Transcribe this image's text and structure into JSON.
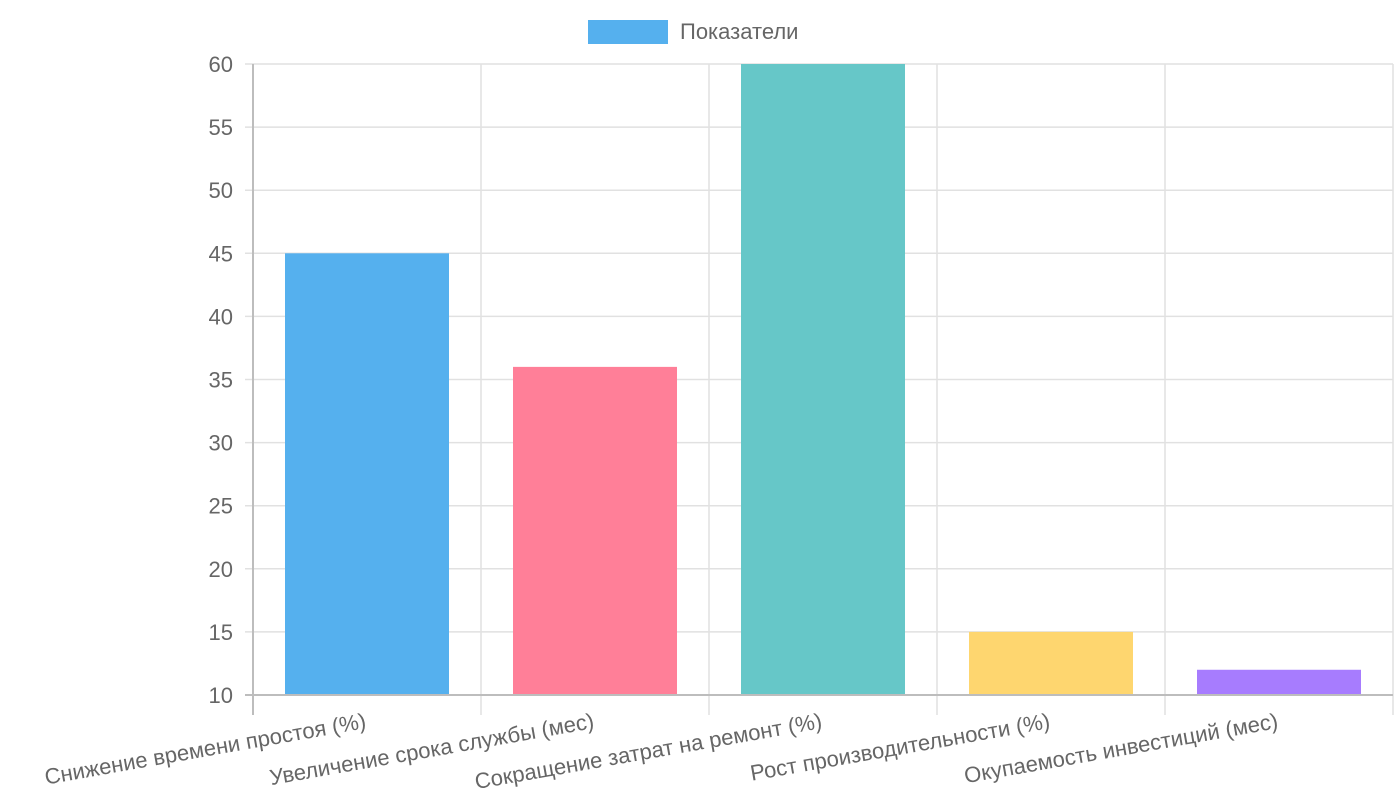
{
  "chart_data": {
    "type": "bar",
    "title": "",
    "xlabel": "",
    "ylabel": "",
    "legend": {
      "position": "top-center",
      "series_name": "Показатели",
      "swatch_color": "#55b0ee"
    },
    "categories": [
      "Снижение времени простоя (%)",
      "Увеличение срока службы (мес)",
      "Сокращение затрат на ремонт (%)",
      "Рост производительности (%)",
      "Окупаемость инвестиций (мес)"
    ],
    "series": [
      {
        "name": "Показатели",
        "values": [
          45,
          36,
          60,
          15,
          12
        ],
        "colors": [
          "#55b0ee",
          "#ff7f98",
          "#66c7c8",
          "#fed66f",
          "#a77cfe"
        ]
      }
    ],
    "ylim": [
      10,
      60
    ],
    "yticks": [
      "10",
      "15",
      "20",
      "25",
      "30",
      "35",
      "40",
      "45",
      "50",
      "55",
      "60"
    ],
    "grid": true
  }
}
